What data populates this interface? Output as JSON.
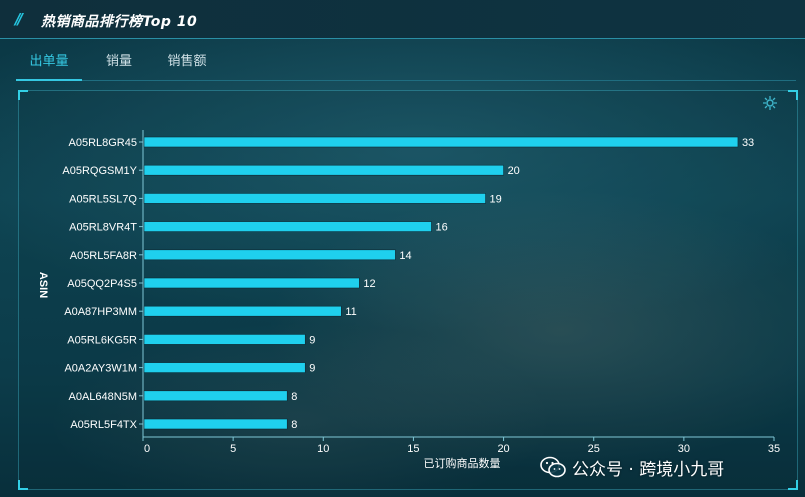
{
  "header": {
    "title": "热销商品排行榜Top 10"
  },
  "tabs": [
    {
      "label": "出单量",
      "active": true
    },
    {
      "label": "销量",
      "active": false
    },
    {
      "label": "销售额",
      "active": false
    }
  ],
  "chart_data": {
    "type": "bar",
    "orientation": "horizontal",
    "title": "",
    "xlabel": "已订购商品数量",
    "ylabel": "ASIN",
    "xlim": [
      0,
      35
    ],
    "xticks": [
      0,
      5,
      10,
      15,
      20,
      25,
      30,
      35
    ],
    "categories": [
      "A05RL8GR45",
      "A05RQGSM1Y",
      "A05RL5SL7Q",
      "A05RL8VR4T",
      "A05RL5FA8R",
      "A05QQ2P4S5",
      "A0A87HP3MM",
      "A05RL6KG5R",
      "A0A2AY3W1M",
      "A0AL648N5M",
      "A05RL5F4TX"
    ],
    "values": [
      33,
      20,
      19,
      16,
      14,
      12,
      11,
      9,
      9,
      8,
      8
    ],
    "bar_color": "#1fd0ee",
    "grid": false
  },
  "watermark": {
    "text": "公众号 · 跨境小九哥"
  }
}
